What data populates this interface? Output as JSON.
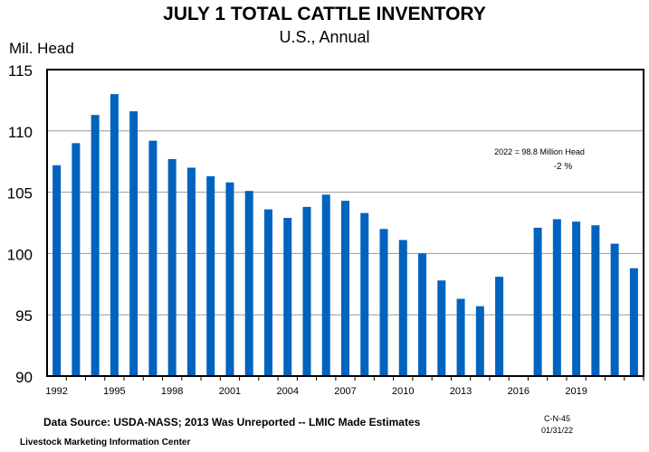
{
  "chart_data": {
    "type": "bar",
    "title": "JULY 1 TOTAL CATTLE INVENTORY",
    "subtitle": "U.S., Annual",
    "ylabel": "Mil. Head",
    "xlabel": "",
    "ylim": [
      90,
      115
    ],
    "yticks": [
      90,
      95,
      100,
      105,
      110,
      115
    ],
    "grid": true,
    "color": "#0063BE",
    "categories": [
      1992,
      1993,
      1994,
      1995,
      1996,
      1997,
      1998,
      1999,
      2000,
      2001,
      2002,
      2003,
      2004,
      2005,
      2006,
      2007,
      2008,
      2009,
      2010,
      2011,
      2012,
      2013,
      2014,
      2015,
      2016,
      2017,
      2018,
      2019,
      2020,
      2021,
      2022
    ],
    "xtick_labels": [
      "1992",
      "1995",
      "1998",
      "2001",
      "2004",
      "2007",
      "2010",
      "2013",
      "2016",
      "2019"
    ],
    "values": [
      107.2,
      109.0,
      111.3,
      113.0,
      111.6,
      109.2,
      107.7,
      107.0,
      106.3,
      105.8,
      105.1,
      103.6,
      102.9,
      103.8,
      104.8,
      104.3,
      103.3,
      102.0,
      101.1,
      100.0,
      97.8,
      96.3,
      95.7,
      98.1,
      null,
      102.1,
      102.8,
      102.6,
      102.3,
      100.8,
      98.8
    ],
    "annotations": [
      "2022 = 98.8 Million Head",
      "-2 %"
    ]
  },
  "footer": {
    "source": "Data Source:  USDA-NASS; 2013 Was Unreported -- LMIC Made Estimates",
    "org": "Livestock Marketing Information Center",
    "code": "C-N-45",
    "date": "01/31/22"
  }
}
